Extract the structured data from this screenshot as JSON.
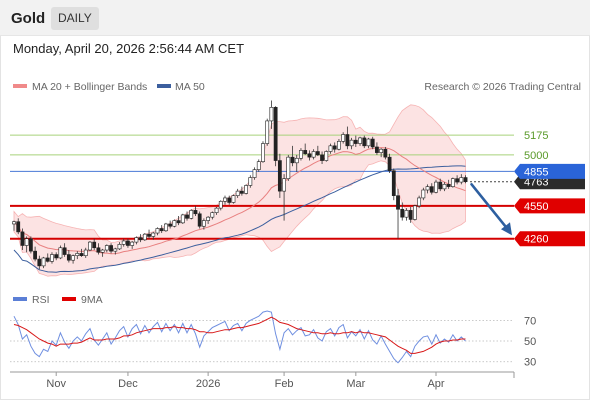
{
  "header": {
    "title": "Gold",
    "period": "DAILY",
    "datetime": "Monday, April 20, 2026 2:56:44 AM CET"
  },
  "chart_data": {
    "type": "candlestick",
    "instrument": "Gold",
    "interval": "daily",
    "title": "",
    "xlabel": "",
    "ylabel": "",
    "ylim": [
      3860,
      5520
    ],
    "grid": false,
    "source": "Research © 2026 Trading Central",
    "x_ticks": [
      "Nov",
      "Dec",
      "2026",
      "Feb",
      "Mar",
      "Apr"
    ],
    "last_price": 4763,
    "legend": [
      {
        "name": "MA 20 + Bollinger Bands",
        "color": "#f08a8a"
      },
      {
        "name": "MA 50",
        "color": "#3c5f9e"
      }
    ],
    "levels": [
      {
        "label": "5175",
        "value": 5175,
        "style": "green-thin",
        "color": "#a6d27a",
        "text_color": "#5a9a2a"
      },
      {
        "label": "5000",
        "value": 5000,
        "style": "green-thin",
        "color": "#a6d27a",
        "text_color": "#5a9a2a"
      },
      {
        "label": "4855",
        "value": 4855,
        "style": "pivot",
        "color": "#4a78d6",
        "text_color": "#ffffff",
        "box": "#2a64d8"
      },
      {
        "label": "4763",
        "value": 4763,
        "style": "last",
        "color": "#444444",
        "text_color": "#ffffff",
        "box": "#2b2b2b"
      },
      {
        "label": "4550",
        "value": 4550,
        "style": "support",
        "color": "#d40000",
        "text_color": "#ffffff",
        "box": "#e00000"
      },
      {
        "label": "4260",
        "value": 4260,
        "style": "support",
        "color": "#d40000",
        "text_color": "#ffffff",
        "box": "#e00000"
      }
    ],
    "forecast_arrow": {
      "from": 4740,
      "to": 4290,
      "direction": "down",
      "color": "#2d5fa0"
    },
    "candles": [
      [
        4390,
        4420,
        4330,
        4410
      ],
      [
        4410,
        4440,
        4300,
        4320
      ],
      [
        4320,
        4350,
        4160,
        4200
      ],
      [
        4200,
        4280,
        4140,
        4260
      ],
      [
        4260,
        4280,
        4130,
        4150
      ],
      [
        4150,
        4190,
        4060,
        4080
      ],
      [
        4080,
        4110,
        3990,
        4020
      ],
      [
        4020,
        4100,
        4000,
        4090
      ],
      [
        4090,
        4130,
        4050,
        4060
      ],
      [
        4060,
        4140,
        4040,
        4120
      ],
      [
        4120,
        4140,
        4070,
        4090
      ],
      [
        4090,
        4200,
        4080,
        4180
      ],
      [
        4180,
        4220,
        4100,
        4120
      ],
      [
        4120,
        4160,
        4050,
        4070
      ],
      [
        4070,
        4120,
        4040,
        4110
      ],
      [
        4110,
        4150,
        4080,
        4130
      ],
      [
        4130,
        4170,
        4100,
        4110
      ],
      [
        4110,
        4180,
        4090,
        4160
      ],
      [
        4160,
        4240,
        4150,
        4230
      ],
      [
        4230,
        4260,
        4160,
        4180
      ],
      [
        4180,
        4220,
        4120,
        4140
      ],
      [
        4140,
        4170,
        4100,
        4160
      ],
      [
        4160,
        4210,
        4140,
        4200
      ],
      [
        4200,
        4220,
        4130,
        4150
      ],
      [
        4150,
        4180,
        4120,
        4170
      ],
      [
        4170,
        4230,
        4160,
        4210
      ],
      [
        4210,
        4260,
        4190,
        4240
      ],
      [
        4240,
        4260,
        4180,
        4200
      ],
      [
        4200,
        4240,
        4170,
        4230
      ],
      [
        4230,
        4280,
        4210,
        4270
      ],
      [
        4270,
        4300,
        4230,
        4250
      ],
      [
        4250,
        4310,
        4240,
        4300
      ],
      [
        4300,
        4340,
        4260,
        4280
      ],
      [
        4280,
        4320,
        4250,
        4310
      ],
      [
        4310,
        4360,
        4290,
        4350
      ],
      [
        4350,
        4380,
        4310,
        4330
      ],
      [
        4330,
        4400,
        4320,
        4390
      ],
      [
        4390,
        4420,
        4350,
        4370
      ],
      [
        4370,
        4430,
        4360,
        4420
      ],
      [
        4420,
        4460,
        4380,
        4400
      ],
      [
        4400,
        4480,
        4390,
        4470
      ],
      [
        4470,
        4500,
        4420,
        4440
      ],
      [
        4440,
        4520,
        4430,
        4510
      ],
      [
        4510,
        4550,
        4460,
        4480
      ],
      [
        4480,
        4500,
        4350,
        4370
      ],
      [
        4370,
        4440,
        4340,
        4420
      ],
      [
        4420,
        4460,
        4390,
        4450
      ],
      [
        4450,
        4500,
        4430,
        4490
      ],
      [
        4490,
        4540,
        4470,
        4530
      ],
      [
        4530,
        4600,
        4510,
        4590
      ],
      [
        4590,
        4640,
        4560,
        4620
      ],
      [
        4620,
        4640,
        4560,
        4580
      ],
      [
        4580,
        4650,
        4570,
        4640
      ],
      [
        4640,
        4700,
        4620,
        4680
      ],
      [
        4680,
        4720,
        4640,
        4660
      ],
      [
        4660,
        4740,
        4650,
        4730
      ],
      [
        4730,
        4820,
        4710,
        4800
      ],
      [
        4800,
        4890,
        4780,
        4870
      ],
      [
        4870,
        4960,
        4850,
        4940
      ],
      [
        4940,
        5120,
        4930,
        5100
      ],
      [
        5100,
        5320,
        5080,
        5300
      ],
      [
        5300,
        5480,
        5230,
        5420
      ],
      [
        5420,
        5430,
        4900,
        4950
      ],
      [
        4950,
        5010,
        4620,
        4680
      ],
      [
        4680,
        4830,
        4420,
        4790
      ],
      [
        4790,
        5000,
        4770,
        4980
      ],
      [
        4980,
        5080,
        4900,
        4930
      ],
      [
        4930,
        5000,
        4850,
        4970
      ],
      [
        4970,
        5060,
        4950,
        5040
      ],
      [
        5040,
        5100,
        5000,
        5010
      ],
      [
        5010,
        5040,
        4950,
        4980
      ],
      [
        4980,
        5050,
        4960,
        5030
      ],
      [
        5030,
        5080,
        4990,
        5000
      ],
      [
        5000,
        5030,
        4920,
        4950
      ],
      [
        4950,
        5040,
        4940,
        5030
      ],
      [
        5030,
        5100,
        5010,
        5080
      ],
      [
        5080,
        5110,
        5020,
        5050
      ],
      [
        5050,
        5140,
        5040,
        5120
      ],
      [
        5120,
        5200,
        5100,
        5180
      ],
      [
        5180,
        5250,
        5050,
        5080
      ],
      [
        5080,
        5150,
        5050,
        5130
      ],
      [
        5130,
        5170,
        5070,
        5100
      ],
      [
        5100,
        5160,
        5080,
        5150
      ],
      [
        5150,
        5170,
        5060,
        5080
      ],
      [
        5080,
        5150,
        5060,
        5140
      ],
      [
        5140,
        5160,
        5050,
        5070
      ],
      [
        5070,
        5110,
        5000,
        5020
      ],
      [
        5020,
        5060,
        4980,
        5050
      ],
      [
        5050,
        5070,
        4960,
        4980
      ],
      [
        4980,
        5010,
        4840,
        4860
      ],
      [
        4860,
        4880,
        4600,
        4640
      ],
      [
        4640,
        4700,
        4260,
        4520
      ],
      [
        4520,
        4580,
        4420,
        4450
      ],
      [
        4450,
        4530,
        4420,
        4510
      ],
      [
        4510,
        4540,
        4400,
        4430
      ],
      [
        4430,
        4560,
        4420,
        4550
      ],
      [
        4550,
        4640,
        4530,
        4620
      ],
      [
        4620,
        4710,
        4600,
        4690
      ],
      [
        4690,
        4740,
        4660,
        4720
      ],
      [
        4720,
        4750,
        4650,
        4670
      ],
      [
        4670,
        4780,
        4660,
        4760
      ],
      [
        4760,
        4790,
        4680,
        4700
      ],
      [
        4700,
        4760,
        4680,
        4740
      ],
      [
        4740,
        4780,
        4700,
        4720
      ],
      [
        4720,
        4800,
        4710,
        4790
      ],
      [
        4790,
        4820,
        4740,
        4760
      ],
      [
        4760,
        4830,
        4740,
        4800
      ],
      [
        4800,
        4820,
        4750,
        4763
      ]
    ],
    "rsi": {
      "legend": [
        {
          "name": "RSI",
          "color": "#5b7fd6"
        },
        {
          "name": "9MA",
          "color": "#e00000"
        }
      ],
      "levels": [
        70,
        50,
        30
      ],
      "ylim": [
        22,
        80
      ],
      "values": [
        74,
        66,
        52,
        56,
        45,
        38,
        35,
        42,
        40,
        50,
        46,
        58,
        49,
        43,
        50,
        54,
        50,
        57,
        62,
        51,
        46,
        52,
        58,
        47,
        53,
        60,
        64,
        54,
        62,
        66,
        57,
        65,
        58,
        64,
        68,
        59,
        67,
        60,
        66,
        58,
        67,
        58,
        66,
        57,
        44,
        55,
        59,
        63,
        65,
        67,
        69,
        60,
        65,
        67,
        60,
        67,
        70,
        72,
        74,
        78,
        79,
        78,
        57,
        42,
        58,
        62,
        56,
        60,
        63,
        55,
        56,
        61,
        53,
        50,
        59,
        62,
        55,
        63,
        66,
        53,
        59,
        55,
        61,
        52,
        60,
        51,
        47,
        55,
        47,
        40,
        33,
        29,
        34,
        40,
        35,
        45,
        50,
        54,
        55,
        47,
        56,
        48,
        52,
        49,
        56,
        50,
        54,
        50
      ],
      "ma": [
        66,
        65,
        63,
        61,
        58,
        55,
        52,
        50,
        48,
        47,
        45,
        47,
        47,
        47,
        48,
        48,
        49,
        51,
        53,
        51,
        51,
        51,
        52,
        52,
        52,
        53,
        55,
        55,
        56,
        58,
        59,
        60,
        61,
        62,
        62,
        62,
        63,
        63,
        64,
        63,
        63,
        62,
        62,
        61,
        59,
        59,
        58,
        58,
        59,
        60,
        61,
        61,
        62,
        63,
        63,
        64,
        65,
        66,
        67,
        69,
        71,
        73,
        71,
        68,
        67,
        66,
        64,
        62,
        61,
        60,
        59,
        58,
        58,
        57,
        57,
        58,
        57,
        57,
        58,
        58,
        59,
        58,
        59,
        58,
        58,
        57,
        56,
        55,
        54,
        51,
        48,
        45,
        43,
        41,
        38,
        38,
        39,
        40,
        42,
        44,
        47,
        49,
        50,
        50,
        51,
        51,
        52,
        52
      ]
    }
  }
}
